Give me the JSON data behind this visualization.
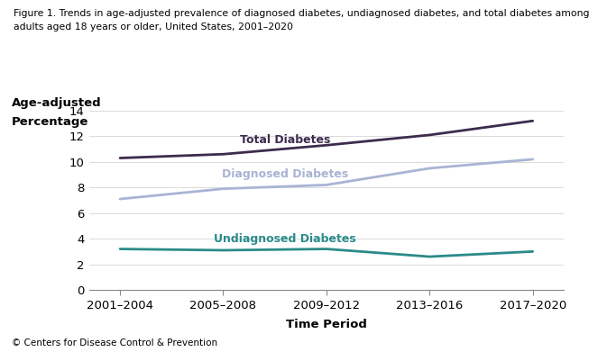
{
  "title_line1": "Figure 1. Trends in age-adjusted prevalence of diagnosed diabetes, undiagnosed diabetes, and total diabetes among",
  "title_line2": "adults aged 18 years or older, United States, 2001–2020",
  "xlabel": "Time Period",
  "ylabel_line1": "Age-adjusted",
  "ylabel_line2": "Percentage",
  "x_labels": [
    "2001–2004",
    "2005–2008",
    "2009–2012",
    "2013–2016",
    "2017–2020"
  ],
  "x_values": [
    0,
    1,
    2,
    3,
    4
  ],
  "total_diabetes": [
    10.3,
    10.6,
    11.3,
    12.1,
    13.2
  ],
  "diagnosed_diabetes": [
    7.1,
    7.9,
    8.2,
    9.5,
    10.2
  ],
  "undiagnosed_diabetes": [
    3.2,
    3.1,
    3.2,
    2.6,
    3.0
  ],
  "total_color": "#3d2b4e",
  "diagnosed_color": "#a9b4d4",
  "undiagnosed_color": "#2a8a8a",
  "total_label": "Total Diabetes",
  "diagnosed_label": "Diagnosed Diabetes",
  "undiagnosed_label": "Undiagnosed Diabetes",
  "ylim": [
    0,
    14
  ],
  "yticks": [
    0,
    2,
    4,
    6,
    8,
    10,
    12,
    14
  ],
  "background_color": "#ffffff",
  "footer": "© Centers for Disease Control & Prevention",
  "footer_bg": "#b0b0b0",
  "linewidth": 2.0,
  "title_fontsize": 7.8,
  "tick_fontsize": 9.5,
  "label_fontsize": 9.5,
  "annotation_fontsize": 9.0
}
